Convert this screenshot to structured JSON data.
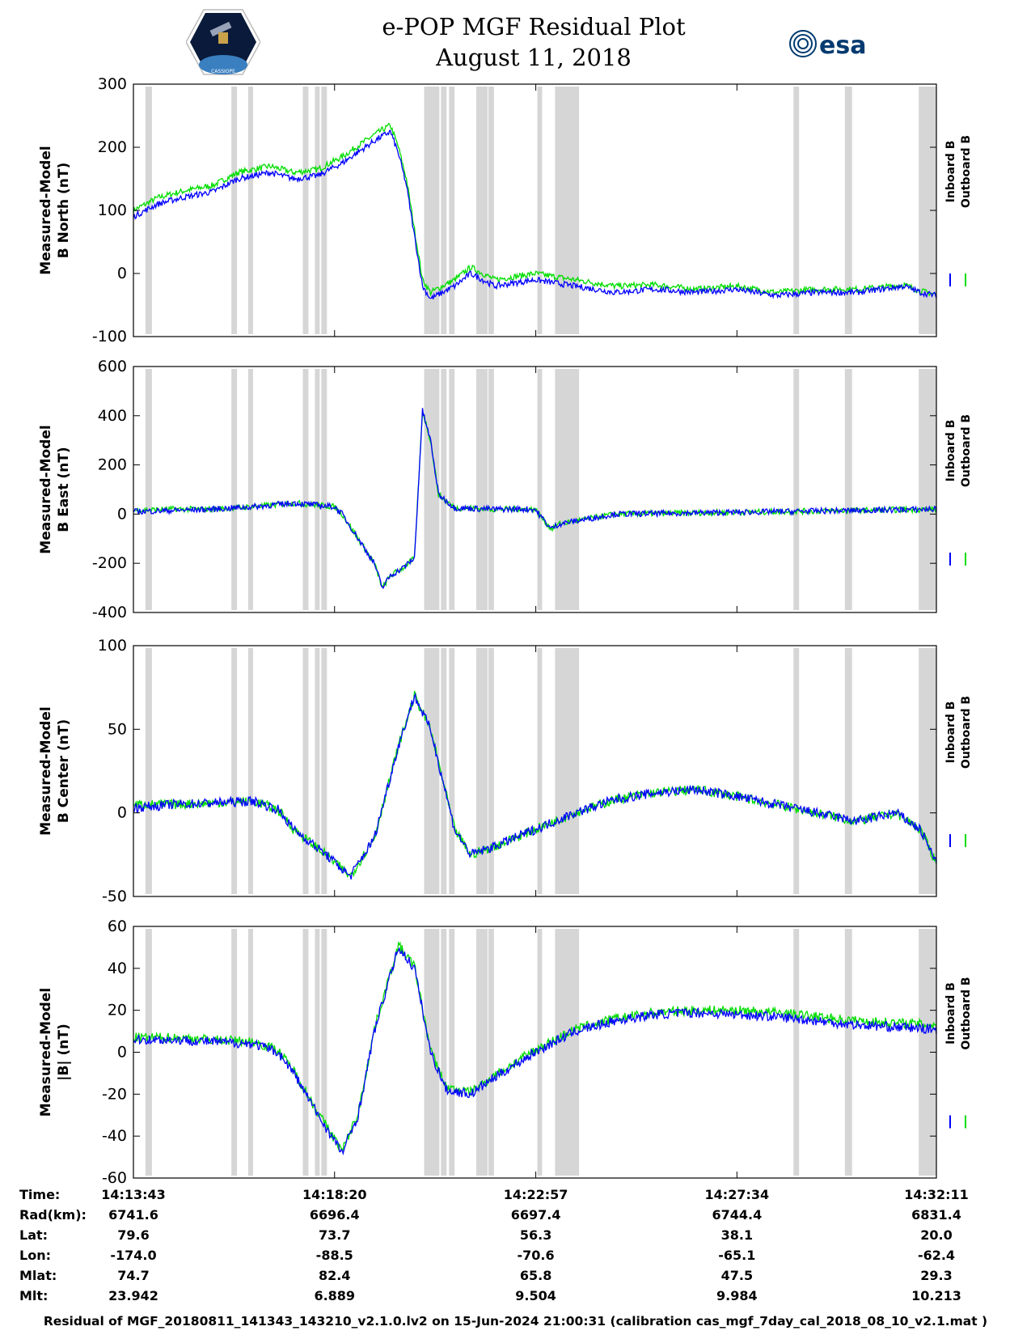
{
  "header": {
    "title": "e-POP MGF Residual Plot",
    "date": "August 11, 2018",
    "logo_left_text": "CASSIOPE",
    "logo_right_text": "esa"
  },
  "legend": {
    "inboard": "Inboard B",
    "outboard": "Outboard B",
    "inboard_color": "#0000ff",
    "outboard_color": "#00dd00"
  },
  "chart_data": [
    {
      "type": "line",
      "ylabel_line1": "Measured-Model",
      "ylabel_line2": "B North (nT)",
      "ylim": [
        -100,
        300
      ],
      "yticks": [
        300,
        200,
        100,
        0,
        -100
      ],
      "x": [
        0,
        0.03,
        0.06,
        0.1,
        0.13,
        0.17,
        0.2,
        0.23,
        0.26,
        0.3,
        0.32,
        0.33,
        0.34,
        0.36,
        0.37,
        0.4,
        0.42,
        0.45,
        0.5,
        0.55,
        0.6,
        0.65,
        0.7,
        0.75,
        0.8,
        0.85,
        0.9,
        0.93,
        0.96,
        0.98,
        1.0
      ],
      "series": [
        {
          "name": "Inboard B",
          "color": "#0000ff",
          "values": [
            90,
            110,
            120,
            130,
            150,
            160,
            150,
            155,
            175,
            210,
            225,
            190,
            140,
            -20,
            -40,
            -20,
            0,
            -20,
            -10,
            -20,
            -30,
            -25,
            -30,
            -25,
            -35,
            -30,
            -30,
            -25,
            -20,
            -30,
            -35
          ]
        },
        {
          "name": "Outboard B",
          "color": "#00dd00",
          "values": [
            100,
            120,
            130,
            140,
            160,
            170,
            160,
            165,
            185,
            220,
            235,
            200,
            150,
            -10,
            -30,
            -10,
            10,
            -10,
            0,
            -10,
            -20,
            -18,
            -25,
            -20,
            -30,
            -25,
            -25,
            -22,
            -18,
            -28,
            -33
          ]
        }
      ]
    },
    {
      "type": "line",
      "ylabel_line1": "Measured-Model",
      "ylabel_line2": "B East (nT)",
      "ylim": [
        -400,
        600
      ],
      "yticks": [
        600,
        400,
        200,
        0,
        -200,
        -400
      ],
      "x": [
        0,
        0.05,
        0.1,
        0.15,
        0.2,
        0.25,
        0.26,
        0.28,
        0.3,
        0.31,
        0.32,
        0.335,
        0.35,
        0.36,
        0.37,
        0.38,
        0.4,
        0.45,
        0.5,
        0.52,
        0.53,
        0.6,
        0.7,
        0.8,
        0.9,
        1.0
      ],
      "series": [
        {
          "name": "Inboard B",
          "color": "#0000ff",
          "values": [
            10,
            15,
            20,
            30,
            45,
            30,
            0,
            -100,
            -200,
            -300,
            -250,
            -220,
            -180,
            420,
            300,
            80,
            25,
            20,
            20,
            -60,
            -40,
            0,
            5,
            10,
            15,
            20
          ]
        },
        {
          "name": "Outboard B",
          "color": "#00dd00",
          "values": [
            15,
            20,
            20,
            30,
            45,
            30,
            0,
            -100,
            -200,
            -300,
            -250,
            -220,
            -180,
            420,
            300,
            80,
            25,
            20,
            20,
            -60,
            -40,
            0,
            5,
            10,
            15,
            20
          ]
        }
      ]
    },
    {
      "type": "line",
      "ylabel_line1": "Measured-Model",
      "ylabel_line2": "B Center (nT)",
      "ylim": [
        -50,
        100
      ],
      "yticks": [
        100,
        50,
        0,
        -50
      ],
      "x": [
        0,
        0.05,
        0.1,
        0.15,
        0.18,
        0.2,
        0.24,
        0.27,
        0.3,
        0.33,
        0.35,
        0.37,
        0.4,
        0.42,
        0.45,
        0.5,
        0.55,
        0.6,
        0.65,
        0.7,
        0.75,
        0.8,
        0.85,
        0.9,
        0.95,
        0.98,
        1.0
      ],
      "series": [
        {
          "name": "Inboard B",
          "color": "#0000ff",
          "values": [
            3,
            5,
            6,
            7,
            2,
            -10,
            -25,
            -38,
            -15,
            40,
            70,
            50,
            -10,
            -25,
            -20,
            -10,
            0,
            8,
            12,
            14,
            10,
            5,
            0,
            -5,
            0,
            -10,
            -30
          ]
        },
        {
          "name": "Outboard B",
          "color": "#00dd00",
          "values": [
            5,
            5,
            6,
            7,
            2,
            -10,
            -25,
            -38,
            -15,
            40,
            70,
            50,
            -10,
            -25,
            -20,
            -10,
            0,
            8,
            12,
            14,
            10,
            5,
            0,
            -5,
            0,
            -10,
            -30
          ]
        }
      ]
    },
    {
      "type": "line",
      "ylabel_line1": "Measured-Model",
      "ylabel_line2": "|B| (nT)",
      "ylim": [
        -60,
        60
      ],
      "yticks": [
        60,
        40,
        20,
        0,
        -20,
        -40,
        -60
      ],
      "x": [
        0,
        0.05,
        0.1,
        0.15,
        0.18,
        0.2,
        0.23,
        0.26,
        0.28,
        0.3,
        0.33,
        0.35,
        0.37,
        0.39,
        0.42,
        0.45,
        0.5,
        0.55,
        0.6,
        0.65,
        0.7,
        0.75,
        0.8,
        0.85,
        0.9,
        0.95,
        1.0
      ],
      "series": [
        {
          "name": "Inboard B",
          "color": "#0000ff",
          "values": [
            6,
            6,
            5,
            4,
            0,
            -10,
            -30,
            -48,
            -30,
            10,
            50,
            40,
            0,
            -18,
            -20,
            -12,
            0,
            10,
            15,
            18,
            19,
            18,
            17,
            15,
            13,
            12,
            11
          ]
        },
        {
          "name": "Outboard B",
          "color": "#00dd00",
          "values": [
            7,
            7,
            6,
            5,
            1,
            -9,
            -29,
            -47,
            -29,
            11,
            51,
            41,
            1,
            -17,
            -19,
            -11,
            1,
            11,
            16,
            19,
            20,
            20,
            19,
            17,
            15,
            14,
            13
          ]
        }
      ]
    }
  ],
  "gap_bands": [
    [
      0.015,
      0.023
    ],
    [
      0.122,
      0.129
    ],
    [
      0.143,
      0.149
    ],
    [
      0.211,
      0.218
    ],
    [
      0.226,
      0.232
    ],
    [
      0.234,
      0.241
    ],
    [
      0.362,
      0.381
    ],
    [
      0.383,
      0.39
    ],
    [
      0.393,
      0.4
    ],
    [
      0.427,
      0.441
    ],
    [
      0.442,
      0.449
    ],
    [
      0.503,
      0.509
    ],
    [
      0.525,
      0.555
    ],
    [
      0.822,
      0.829
    ],
    [
      0.886,
      0.895
    ],
    [
      0.978,
      1.0
    ]
  ],
  "footer": {
    "row_labels": [
      "Time:",
      "Rad(km):",
      "Lat:",
      "Lon:",
      "Mlat:",
      "Mlt:"
    ],
    "columns": [
      [
        "14:13:43",
        "6741.6",
        "79.6",
        "-174.0",
        "74.7",
        "23.942"
      ],
      [
        "14:18:20",
        "6696.4",
        "73.7",
        "-88.5",
        "82.4",
        "6.889"
      ],
      [
        "14:22:57",
        "6697.4",
        "56.3",
        "-70.6",
        "65.8",
        "9.504"
      ],
      [
        "14:27:34",
        "6744.4",
        "38.1",
        "-65.1",
        "47.5",
        "9.984"
      ],
      [
        "14:32:11",
        "6831.4",
        "20.0",
        "-62.4",
        "29.3",
        "10.213"
      ]
    ],
    "note": "Residual of MGF_20180811_141343_143210_v2.1.0.lv2 on 15-Jun-2024 21:00:31 (calibration cas_mgf_7day_cal_2018_08_10_v2.1.mat )"
  }
}
